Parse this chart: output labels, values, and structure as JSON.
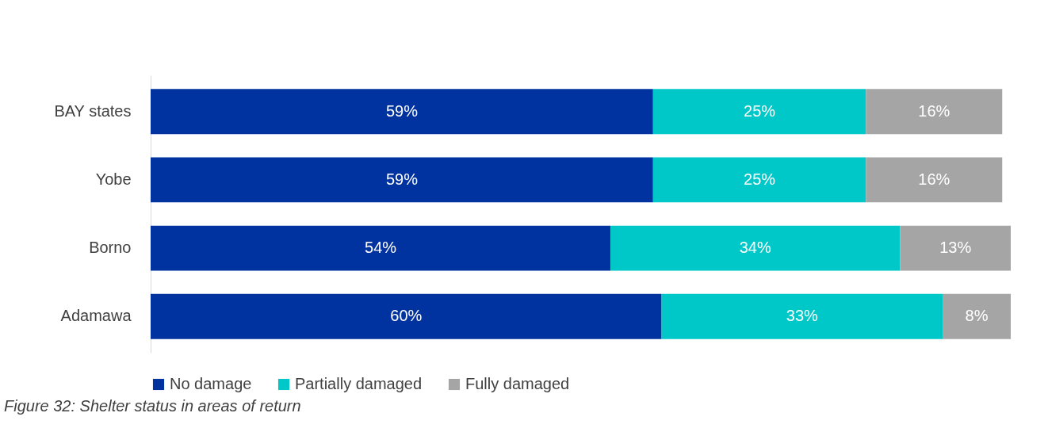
{
  "chart_data": {
    "type": "bar",
    "orientation": "horizontal",
    "stacked": true,
    "legend": "bottom",
    "grid": false,
    "categories": [
      "BAY states",
      "Yobe",
      "Borno",
      "Adamawa"
    ],
    "series": [
      {
        "name": "No damage",
        "color": "#0033a0",
        "values": [
          59,
          59,
          54,
          60
        ],
        "value_labels": [
          "59%",
          "59%",
          "54%",
          "60%"
        ]
      },
      {
        "name": "Partially damaged",
        "color": "#00c8c8",
        "values": [
          25,
          25,
          34,
          33
        ],
        "value_labels": [
          "25%",
          "25%",
          "34%",
          "33%"
        ]
      },
      {
        "name": "Fully damaged",
        "color": "#a5a5a5",
        "values": [
          16,
          16,
          13,
          8
        ],
        "value_labels": [
          "16%",
          "16%",
          "13%",
          "8%"
        ]
      }
    ],
    "annotations": [
      "Figure 32: Shelter status in areas of return"
    ]
  }
}
